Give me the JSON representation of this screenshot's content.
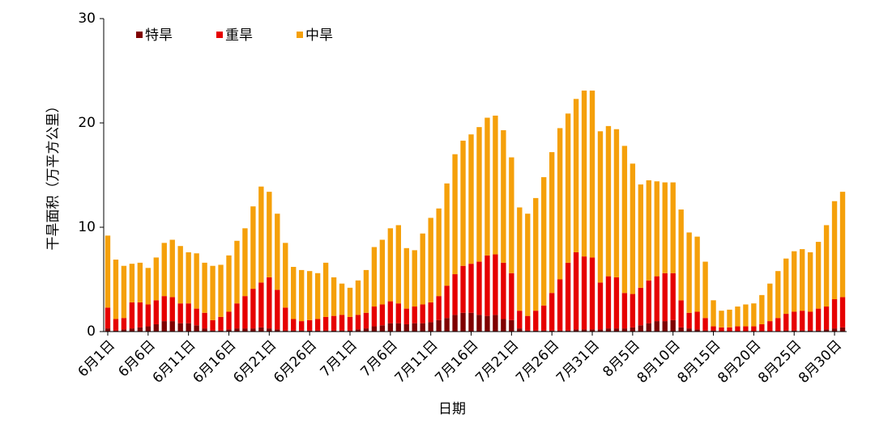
{
  "chart_data": {
    "type": "stacked_bar",
    "y_label": "干旱面积（万平方公里）",
    "x_label": "日期",
    "categories": [
      "6月1日",
      null,
      null,
      null,
      null,
      "6月6日",
      null,
      null,
      null,
      null,
      "6月11日",
      null,
      null,
      null,
      null,
      "6月16日",
      null,
      null,
      null,
      null,
      "6月21日",
      null,
      null,
      null,
      null,
      "6月26日",
      null,
      null,
      null,
      null,
      "7月1日",
      null,
      null,
      null,
      null,
      "7月6日",
      null,
      null,
      null,
      null,
      "7月11日",
      null,
      null,
      null,
      null,
      "7月16日",
      null,
      null,
      null,
      null,
      "7月21日",
      null,
      null,
      null,
      null,
      "7月26日",
      null,
      null,
      null,
      null,
      "7月31日",
      null,
      null,
      null,
      null,
      "8月5日",
      null,
      null,
      null,
      null,
      "8月10日",
      null,
      null,
      null,
      null,
      "8月15日",
      null,
      null,
      null,
      null,
      "8月20日",
      null,
      null,
      null,
      null,
      "8月25日",
      null,
      null,
      null,
      null,
      "8月30日",
      null
    ],
    "series": [
      {
        "name": "特旱",
        "color": "#7f0000",
        "values": [
          0.3,
          0.1,
          0.2,
          0.3,
          0.4,
          0.5,
          0.7,
          1.0,
          1.0,
          0.8,
          0.8,
          0.6,
          0.3,
          0.1,
          0.1,
          0.2,
          0.3,
          0.3,
          0.3,
          0.4,
          0.3,
          0.2,
          0.1,
          0.1,
          0.1,
          0.1,
          0.1,
          0.1,
          0.1,
          0.1,
          0.1,
          0.2,
          0.3,
          0.5,
          0.6,
          0.8,
          0.8,
          0.7,
          0.8,
          0.8,
          0.9,
          1.1,
          1.3,
          1.6,
          1.8,
          1.8,
          1.6,
          1.5,
          1.6,
          1.2,
          1.1,
          0.3,
          0.1,
          0.1,
          0.1,
          0.1,
          0.1,
          0.1,
          0.2,
          0.2,
          0.2,
          0.2,
          0.3,
          0.3,
          0.3,
          0.4,
          0.6,
          0.8,
          1.0,
          1.0,
          1.1,
          0.4,
          0.3,
          0.2,
          0.1,
          0.1,
          0,
          0,
          0,
          0,
          0,
          0,
          0,
          0,
          0.1,
          0.1,
          0.1,
          0.1,
          0.1,
          0.2,
          0.3,
          0.4
        ]
      },
      {
        "name": "重旱",
        "color": "#e60000",
        "values": [
          2.0,
          1.1,
          1.1,
          2.5,
          2.4,
          2.1,
          2.3,
          2.4,
          2.3,
          1.9,
          1.9,
          1.6,
          1.5,
          1.0,
          1.3,
          1.7,
          2.4,
          3.1,
          3.8,
          4.3,
          4.9,
          3.8,
          2.2,
          1.1,
          0.9,
          1.0,
          1.1,
          1.3,
          1.4,
          1.5,
          1.3,
          1.4,
          1.5,
          1.9,
          2.0,
          2.1,
          1.9,
          1.5,
          1.6,
          1.8,
          1.9,
          2.3,
          3.1,
          3.9,
          4.5,
          4.7,
          5.1,
          5.8,
          5.8,
          5.4,
          4.5,
          1.7,
          1.4,
          1.9,
          2.4,
          3.6,
          4.9,
          6.5,
          7.4,
          7.0,
          6.9,
          4.5,
          5.0,
          4.9,
          3.4,
          3.2,
          3.6,
          4.1,
          4.3,
          4.6,
          4.5,
          2.6,
          1.5,
          1.7,
          1.2,
          0.4,
          0.4,
          0.4,
          0.5,
          0.5,
          0.5,
          0.7,
          1.0,
          1.3,
          1.6,
          1.8,
          1.9,
          1.8,
          2.1,
          2.2,
          2.8,
          2.9
        ]
      },
      {
        "name": "中旱",
        "color": "#f5a00a",
        "values": [
          6.9,
          5.7,
          5.0,
          3.7,
          3.8,
          3.5,
          4.1,
          5.1,
          5.5,
          5.5,
          4.9,
          5.3,
          4.8,
          5.2,
          5.0,
          5.4,
          6.0,
          6.5,
          7.9,
          9.2,
          8.2,
          7.3,
          6.2,
          5.0,
          4.9,
          4.7,
          4.4,
          5.2,
          3.7,
          3.0,
          2.8,
          3.3,
          4.1,
          5.7,
          6.2,
          7.0,
          7.5,
          5.8,
          5.4,
          6.8,
          8.1,
          8.4,
          9.8,
          11.5,
          12.0,
          12.4,
          12.9,
          13.2,
          13.3,
          12.7,
          11.1,
          9.9,
          9.8,
          10.8,
          12.3,
          13.5,
          14.5,
          14.3,
          14.7,
          15.9,
          16.0,
          14.5,
          14.4,
          14.2,
          14.1,
          12.5,
          9.9,
          9.6,
          9.1,
          8.7,
          8.7,
          8.7,
          7.7,
          7.2,
          5.4,
          2.5,
          1.6,
          1.7,
          1.9,
          2.1,
          2.2,
          2.8,
          3.6,
          4.5,
          5.3,
          5.8,
          5.9,
          5.7,
          6.4,
          7.8,
          9.4,
          10.1
        ]
      }
    ],
    "ylim": [
      0,
      30
    ],
    "yticks": [
      0,
      10,
      20,
      30
    ],
    "grid": false,
    "legend": "top-left"
  }
}
